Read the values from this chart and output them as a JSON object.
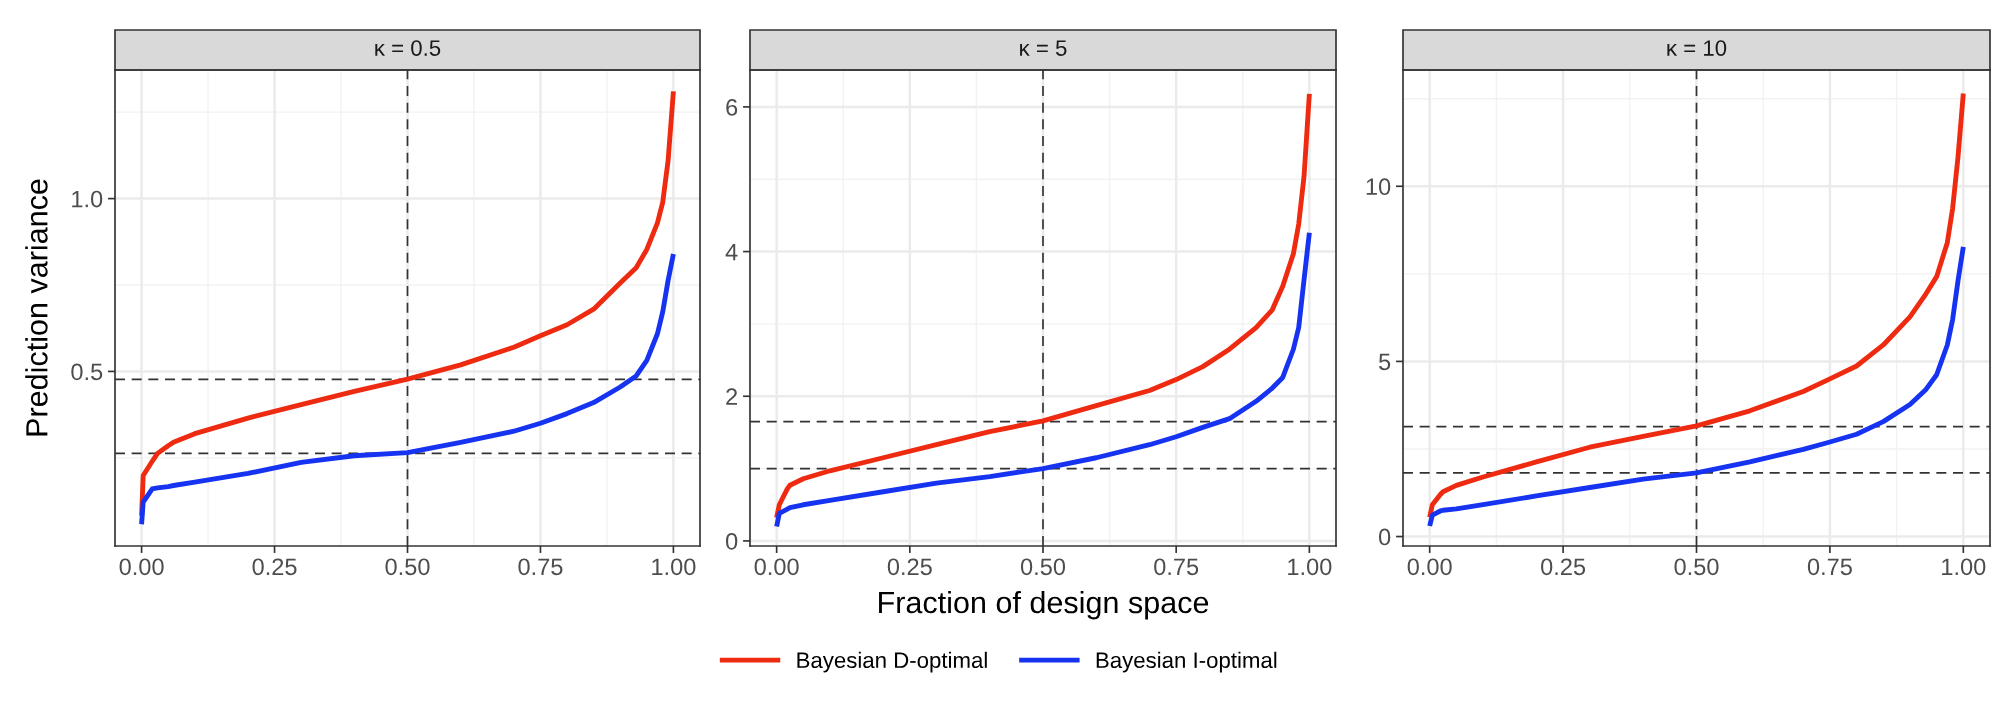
{
  "chart_data": [
    {
      "type": "line",
      "title": "κ = 0.5",
      "ylabel": "Prediction variance",
      "xlim": [
        -0.05,
        1.05
      ],
      "xticks": [
        {
          "value": 0,
          "label": "0.00"
        },
        {
          "value": 0.25,
          "label": "0.25"
        },
        {
          "value": 0.5,
          "label": "0.50"
        },
        {
          "value": 0.75,
          "label": "0.75"
        },
        {
          "value": 1,
          "label": "1.00"
        }
      ],
      "ylim": [
        -0.005,
        1.372
      ],
      "yticks": [
        {
          "value": 0.5,
          "label": "0.5"
        },
        {
          "value": 1,
          "label": "1.0"
        }
      ],
      "grid": true,
      "legend": "bottom",
      "line_style": "solid",
      "marker": "none",
      "x": [
        0,
        0.003,
        0.02,
        0.03,
        0.05,
        0.06,
        0.1,
        0.2,
        0.3,
        0.4,
        0.5,
        0.6,
        0.7,
        0.75,
        0.8,
        0.85,
        0.9,
        0.93,
        0.95,
        0.97,
        0.98,
        0.99,
        1.0
      ],
      "series": [
        {
          "name": "Bayesian D-optimal",
          "color": "#ee2a10",
          "values": [
            0.083,
            0.199,
            0.24,
            0.263,
            0.285,
            0.295,
            0.32,
            0.365,
            0.404,
            0.442,
            0.478,
            0.519,
            0.57,
            0.603,
            0.635,
            0.68,
            0.756,
            0.8,
            0.853,
            0.93,
            0.99,
            1.11,
            1.31
          ]
        },
        {
          "name": "Bayesian I-optimal",
          "color": "#1533f0",
          "values": [
            0.058,
            0.122,
            0.16,
            0.163,
            0.167,
            0.17,
            0.18,
            0.205,
            0.237,
            0.256,
            0.265,
            0.295,
            0.327,
            0.35,
            0.378,
            0.41,
            0.455,
            0.487,
            0.532,
            0.609,
            0.673,
            0.763,
            0.84
          ]
        }
      ],
      "ref_lines": [
        {
          "axis": "x",
          "value": 0.5,
          "line_style": "dashed",
          "color": "#333333"
        },
        {
          "axis": "y",
          "value": 0.477,
          "line_style": "dashed",
          "color": "#333333"
        },
        {
          "axis": "y",
          "value": 0.263,
          "line_style": "dashed",
          "color": "#333333"
        }
      ]
    },
    {
      "type": "line",
      "title": "κ = 5",
      "xlabel": "Fraction of design space",
      "xlim": [
        -0.05,
        1.05
      ],
      "xticks": [
        {
          "value": 0,
          "label": "0.00"
        },
        {
          "value": 0.25,
          "label": "0.25"
        },
        {
          "value": 0.5,
          "label": "0.50"
        },
        {
          "value": 0.75,
          "label": "0.75"
        },
        {
          "value": 1,
          "label": "1.00"
        }
      ],
      "ylim": [
        -0.07,
        6.51
      ],
      "yticks": [
        0,
        2,
        4,
        6
      ],
      "grid": true,
      "line_style": "solid",
      "marker": "none",
      "x": [
        0,
        0.005,
        0.02,
        0.025,
        0.05,
        0.1,
        0.2,
        0.3,
        0.4,
        0.5,
        0.6,
        0.7,
        0.75,
        0.8,
        0.85,
        0.9,
        0.93,
        0.95,
        0.97,
        0.98,
        0.99,
        1.0
      ],
      "series": [
        {
          "color": "#ee2a10",
          "values": [
            0.32,
            0.5,
            0.72,
            0.77,
            0.86,
            0.97,
            1.15,
            1.33,
            1.51,
            1.66,
            1.87,
            2.08,
            2.23,
            2.41,
            2.65,
            2.95,
            3.19,
            3.52,
            3.97,
            4.38,
            5.04,
            6.18
          ]
        },
        {
          "color": "#1533f0",
          "values": [
            0.2,
            0.38,
            0.44,
            0.46,
            0.5,
            0.56,
            0.68,
            0.8,
            0.89,
            1.0,
            1.15,
            1.33,
            1.44,
            1.57,
            1.69,
            1.93,
            2.11,
            2.26,
            2.65,
            2.95,
            3.61,
            4.26
          ]
        }
      ],
      "ref_lines": [
        {
          "axis": "x",
          "value": 0.5,
          "line_style": "dashed",
          "color": "#333333"
        },
        {
          "axis": "y",
          "value": 1.65,
          "line_style": "dashed",
          "color": "#333333"
        },
        {
          "axis": "y",
          "value": 1.0,
          "line_style": "dashed",
          "color": "#333333"
        }
      ]
    },
    {
      "type": "line",
      "title": "κ = 10",
      "xlim": [
        -0.05,
        1.05
      ],
      "xticks": [
        {
          "value": 0,
          "label": "0.00"
        },
        {
          "value": 0.25,
          "label": "0.25"
        },
        {
          "value": 0.5,
          "label": "0.50"
        },
        {
          "value": 0.75,
          "label": "0.75"
        },
        {
          "value": 1,
          "label": "1.00"
        }
      ],
      "ylim": [
        -0.27,
        13.32
      ],
      "yticks": [
        0,
        5,
        10
      ],
      "grid": true,
      "line_style": "solid",
      "marker": "none",
      "x": [
        0,
        0.005,
        0.02,
        0.025,
        0.05,
        0.1,
        0.2,
        0.3,
        0.4,
        0.5,
        0.6,
        0.7,
        0.75,
        0.8,
        0.85,
        0.9,
        0.93,
        0.95,
        0.97,
        0.98,
        0.99,
        1.0
      ],
      "series": [
        {
          "color": "#ee2a10",
          "values": [
            0.55,
            0.91,
            1.2,
            1.28,
            1.46,
            1.7,
            2.13,
            2.55,
            2.86,
            3.16,
            3.59,
            4.14,
            4.5,
            4.87,
            5.47,
            6.27,
            6.93,
            7.42,
            8.39,
            9.37,
            10.83,
            12.65
          ]
        },
        {
          "color": "#1533f0",
          "values": [
            0.3,
            0.61,
            0.73,
            0.75,
            0.79,
            0.91,
            1.16,
            1.4,
            1.64,
            1.82,
            2.13,
            2.49,
            2.7,
            2.92,
            3.28,
            3.77,
            4.2,
            4.62,
            5.47,
            6.2,
            7.3,
            8.27
          ]
        }
      ],
      "ref_lines": [
        {
          "axis": "x",
          "value": 0.5,
          "line_style": "dashed",
          "color": "#333333"
        },
        {
          "axis": "y",
          "value": 3.14,
          "line_style": "dashed",
          "color": "#333333"
        },
        {
          "axis": "y",
          "value": 1.82,
          "line_style": "dashed",
          "color": "#333333"
        }
      ]
    }
  ]
}
